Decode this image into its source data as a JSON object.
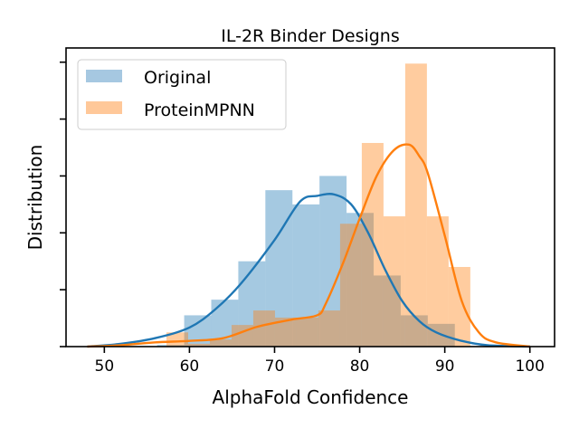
{
  "chart_data": {
    "type": "histogram+kde",
    "title": "IL-2R Binder Designs",
    "xlabel": "AlphaFold Confidence",
    "ylabel": "Distribution",
    "xlim": [
      45.5,
      102.9
    ],
    "ylim": [
      0,
      0.105
    ],
    "xticks": [
      50,
      60,
      70,
      80,
      90,
      100
    ],
    "xtick_labels": [
      "50",
      "60",
      "70",
      "80",
      "90",
      "100"
    ],
    "yticks": [
      0,
      0.02,
      0.04,
      0.06,
      0.08,
      0.1
    ],
    "grid": false,
    "legend_position": "top-left",
    "series": [
      {
        "name": "Original",
        "color": "#1f77b4",
        "hist_color": "#a6c8e1",
        "bin_start": 56.2,
        "bin_width": 3.18,
        "densities": [
          0.0006,
          0.011,
          0.0165,
          0.03,
          0.055,
          0.05,
          0.06,
          0.047,
          0.025,
          0.011,
          0.008
        ],
        "kde": [
          [
            48,
            0
          ],
          [
            52,
            0.001
          ],
          [
            56,
            0.003
          ],
          [
            60,
            0.0067
          ],
          [
            63,
            0.013
          ],
          [
            66,
            0.022
          ],
          [
            70,
            0.0375
          ],
          [
            73,
            0.051
          ],
          [
            75,
            0.053
          ],
          [
            77,
            0.0535
          ],
          [
            79,
            0.05
          ],
          [
            81,
            0.04
          ],
          [
            83,
            0.027
          ],
          [
            85,
            0.016
          ],
          [
            87,
            0.009
          ],
          [
            89,
            0.005
          ],
          [
            92,
            0.002
          ],
          [
            95,
            0.0005
          ],
          [
            100,
            0
          ]
        ]
      },
      {
        "name": "ProteinMPNN",
        "color": "#ff7f0e",
        "hist_color": "#ffc899",
        "bin_start": 57.3,
        "bin_width": 2.55,
        "densities": [
          0.005,
          0.001,
          0.0025,
          0.0076,
          0.0127,
          0.0102,
          0.0102,
          0.0127,
          0.0432,
          0.0716,
          0.0458,
          0.0995,
          0.0458,
          0.028
        ],
        "kde": [
          [
            48,
            0
          ],
          [
            52,
            0.0005
          ],
          [
            56,
            0.0015
          ],
          [
            60,
            0.002
          ],
          [
            64,
            0.003
          ],
          [
            68,
            0.007
          ],
          [
            72,
            0.0095
          ],
          [
            75,
            0.011
          ],
          [
            76,
            0.015
          ],
          [
            78,
            0.029
          ],
          [
            80,
            0.045
          ],
          [
            82,
            0.06
          ],
          [
            84,
            0.069
          ],
          [
            85.8,
            0.071
          ],
          [
            87,
            0.067
          ],
          [
            88,
            0.061
          ],
          [
            90,
            0.039
          ],
          [
            92,
            0.016
          ],
          [
            94,
            0.005
          ],
          [
            96,
            0.0015
          ],
          [
            100,
            0
          ]
        ]
      }
    ]
  }
}
